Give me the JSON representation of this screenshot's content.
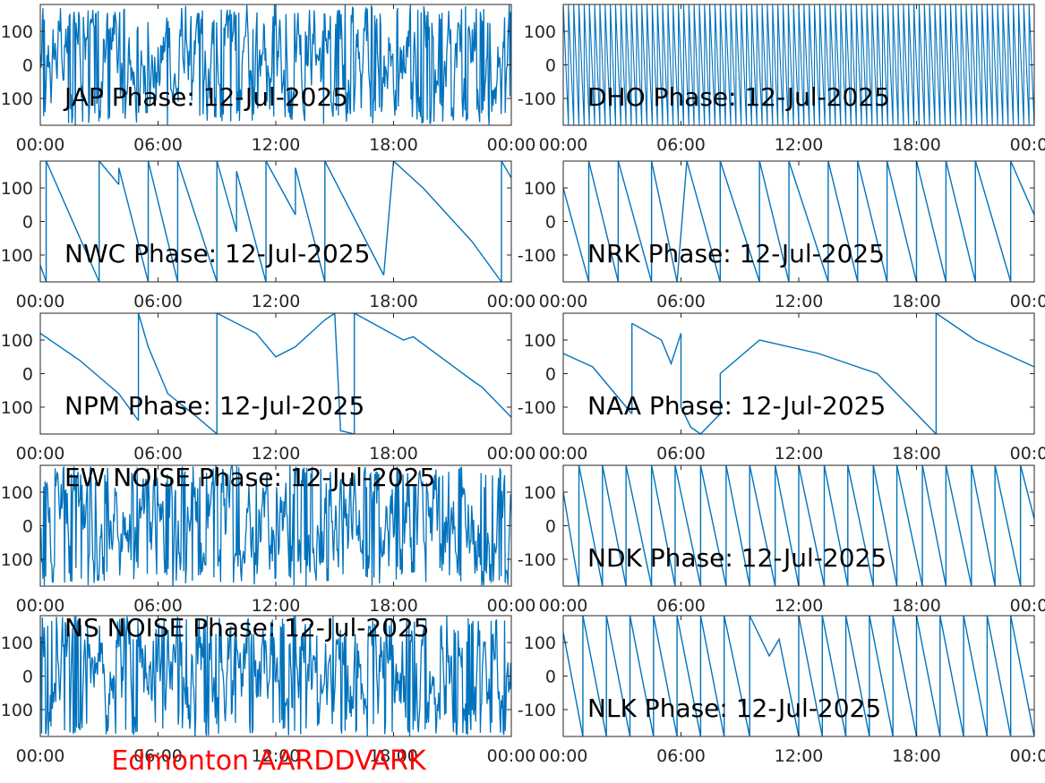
{
  "station_label": "Edmonton AARDDVARK",
  "colors": {
    "trace": "#0072bd",
    "axes": "#262626",
    "station_label": "#ff0000"
  },
  "chart_data": [
    {
      "type": "line",
      "title": "JAP Phase: 12-Jul-2025",
      "xlim": [
        0,
        24
      ],
      "ylim": [
        -180,
        180
      ],
      "xticks": [
        "00:00",
        "06:00",
        "12:00",
        "18:00",
        "00:00"
      ],
      "yticks": [
        "-100",
        "0",
        "100"
      ],
      "grid": false,
      "pattern": "noise"
    },
    {
      "type": "line",
      "title": "DHO Phase: 12-Jul-2025",
      "xlim": [
        0,
        24
      ],
      "ylim": [
        -180,
        180
      ],
      "xticks": [
        "00:00",
        "06:00",
        "12:00",
        "18:00",
        "00:00"
      ],
      "yticks": [
        "-100",
        "0",
        "100"
      ],
      "grid": false,
      "pattern": "dense-wrap"
    },
    {
      "type": "line",
      "title": "NWC Phase: 12-Jul-2025",
      "xlim": [
        0,
        24
      ],
      "ylim": [
        -180,
        180
      ],
      "xticks": [
        "00:00",
        "06:00",
        "12:00",
        "18:00",
        "00:00"
      ],
      "yticks": [
        "-100",
        "0",
        "100"
      ],
      "grid": false,
      "pattern": "wrap",
      "series": [
        {
          "x": [
            0.0,
            0.3
          ],
          "y": [
            -130,
            -180
          ]
        },
        {
          "x": [
            0.3,
            3.0
          ],
          "y": [
            180,
            -180
          ]
        },
        {
          "x": [
            3.0,
            4.0
          ],
          "y": [
            180,
            110
          ]
        },
        {
          "x": [
            4.0,
            5.5
          ],
          "y": [
            160,
            -180
          ]
        },
        {
          "x": [
            5.5,
            7.0
          ],
          "y": [
            180,
            -180
          ]
        },
        {
          "x": [
            7.0,
            9.0
          ],
          "y": [
            180,
            -180
          ]
        },
        {
          "x": [
            9.0,
            10.0
          ],
          "y": [
            180,
            -30
          ]
        },
        {
          "x": [
            10.0,
            11.5
          ],
          "y": [
            150,
            -180
          ]
        },
        {
          "x": [
            11.5,
            13.0
          ],
          "y": [
            180,
            20
          ]
        },
        {
          "x": [
            13.0,
            14.5
          ],
          "y": [
            160,
            -180
          ]
        },
        {
          "x": [
            14.5,
            17.5
          ],
          "y": [
            180,
            -160
          ]
        },
        {
          "x": [
            18.0,
            19.5
          ],
          "y": [
            180,
            100
          ]
        },
        {
          "x": [
            19.5,
            22.0
          ],
          "y": [
            100,
            -60
          ]
        },
        {
          "x": [
            22.0,
            23.5
          ],
          "y": [
            -60,
            -180
          ]
        },
        {
          "x": [
            23.5,
            24.0
          ],
          "y": [
            180,
            130
          ]
        }
      ]
    },
    {
      "type": "line",
      "title": "NRK Phase: 12-Jul-2025",
      "xlim": [
        0,
        24
      ],
      "ylim": [
        -180,
        180
      ],
      "xticks": [
        "00:00",
        "06:00",
        "12:00",
        "18:00",
        "00:00"
      ],
      "yticks": [
        "-100",
        "0",
        "100"
      ],
      "grid": false,
      "pattern": "wrap",
      "series": [
        {
          "x": [
            0.0,
            1.3
          ],
          "y": [
            100,
            -180
          ]
        },
        {
          "x": [
            1.3,
            2.8
          ],
          "y": [
            180,
            -180
          ]
        },
        {
          "x": [
            2.8,
            4.5
          ],
          "y": [
            180,
            -180
          ]
        },
        {
          "x": [
            4.5,
            5.8
          ],
          "y": [
            180,
            -180
          ]
        },
        {
          "x": [
            6.3,
            8.0
          ],
          "y": [
            180,
            -180
          ]
        },
        {
          "x": [
            8.0,
            10.0
          ],
          "y": [
            180,
            -180
          ]
        },
        {
          "x": [
            10.0,
            11.5
          ],
          "y": [
            180,
            -180
          ]
        },
        {
          "x": [
            11.5,
            13.5
          ],
          "y": [
            180,
            -180
          ]
        },
        {
          "x": [
            13.5,
            15.0
          ],
          "y": [
            180,
            -180
          ]
        },
        {
          "x": [
            15.0,
            16.5
          ],
          "y": [
            180,
            -180
          ]
        },
        {
          "x": [
            16.5,
            18.0
          ],
          "y": [
            180,
            -180
          ]
        },
        {
          "x": [
            18.0,
            19.5
          ],
          "y": [
            180,
            -180
          ]
        },
        {
          "x": [
            19.5,
            21.0
          ],
          "y": [
            180,
            -180
          ]
        },
        {
          "x": [
            21.0,
            22.8
          ],
          "y": [
            180,
            -180
          ]
        },
        {
          "x": [
            22.8,
            24.0
          ],
          "y": [
            180,
            20
          ]
        }
      ]
    },
    {
      "type": "line",
      "title": "NPM Phase: 12-Jul-2025",
      "xlim": [
        0,
        24
      ],
      "ylim": [
        -180,
        180
      ],
      "xticks": [
        "00:00",
        "06:00",
        "12:00",
        "18:00",
        "00:00"
      ],
      "yticks": [
        "-100",
        "0",
        "100"
      ],
      "grid": false,
      "pattern": "wrap",
      "series": [
        {
          "x": [
            0.0,
            2.0,
            4.0,
            5.0
          ],
          "y": [
            120,
            40,
            -60,
            -140
          ]
        },
        {
          "x": [
            5.0,
            5.5,
            6.5,
            8.0,
            9.0
          ],
          "y": [
            180,
            80,
            -60,
            -130,
            -180
          ]
        },
        {
          "x": [
            9.0,
            11.0,
            12.0,
            13.0,
            14.5,
            15.0
          ],
          "y": [
            180,
            120,
            50,
            80,
            160,
            180
          ]
        },
        {
          "x": [
            15.0,
            15.3,
            16.0
          ],
          "y": [
            180,
            -170,
            -180
          ]
        },
        {
          "x": [
            16.0,
            18.5,
            19.0,
            22.0,
            22.5,
            24.0
          ],
          "y": [
            180,
            100,
            110,
            -20,
            -40,
            -130
          ]
        }
      ]
    },
    {
      "type": "line",
      "title": "NAA Phase: 12-Jul-2025",
      "xlim": [
        0,
        24
      ],
      "ylim": [
        -180,
        180
      ],
      "xticks": [
        "00:00",
        "06:00",
        "12:00",
        "18:00",
        "00:00"
      ],
      "yticks": [
        "-100",
        "0",
        "100"
      ],
      "grid": false,
      "pattern": "wrap",
      "series": [
        {
          "x": [
            0.0,
            1.5,
            3.5
          ],
          "y": [
            60,
            20,
            -120
          ]
        },
        {
          "x": [
            3.5,
            5.0,
            5.5,
            6.0
          ],
          "y": [
            150,
            100,
            30,
            120
          ]
        },
        {
          "x": [
            6.0,
            6.5,
            7.0,
            8.0
          ],
          "y": [
            -100,
            -160,
            -180,
            -120
          ]
        },
        {
          "x": [
            8.0,
            10.0,
            13.0,
            16.0,
            18.0,
            19.0
          ],
          "y": [
            0,
            100,
            60,
            0,
            -120,
            -180
          ]
        },
        {
          "x": [
            19.0,
            21.0,
            24.0
          ],
          "y": [
            180,
            100,
            20
          ]
        }
      ]
    },
    {
      "type": "line",
      "title": "EW NOISE Phase: 12-Jul-2025",
      "xlim": [
        0,
        24
      ],
      "ylim": [
        -180,
        180
      ],
      "xticks": [
        "00:00",
        "06:00",
        "12:00",
        "18:00",
        "00:00"
      ],
      "yticks": [
        "-100",
        "0",
        "100"
      ],
      "grid": false,
      "pattern": "noise"
    },
    {
      "type": "line",
      "title": "NDK Phase: 12-Jul-2025",
      "xlim": [
        0,
        24
      ],
      "ylim": [
        -180,
        180
      ],
      "xticks": [
        "00:00",
        "06:00",
        "12:00",
        "18:00",
        "00:00"
      ],
      "yticks": [
        "-100",
        "0",
        "100"
      ],
      "grid": false,
      "pattern": "wrap",
      "series": [
        {
          "x": [
            0.0,
            0.8
          ],
          "y": [
            100,
            -180
          ]
        },
        {
          "x": [
            0.8,
            2.0
          ],
          "y": [
            180,
            -180
          ]
        },
        {
          "x": [
            2.0,
            3.2
          ],
          "y": [
            180,
            -180
          ]
        },
        {
          "x": [
            3.2,
            4.5
          ],
          "y": [
            180,
            -180
          ]
        },
        {
          "x": [
            4.5,
            5.7
          ],
          "y": [
            180,
            -180
          ]
        },
        {
          "x": [
            5.7,
            7.0
          ],
          "y": [
            180,
            -180
          ]
        },
        {
          "x": [
            7.0,
            8.3
          ],
          "y": [
            180,
            -180
          ]
        },
        {
          "x": [
            8.3,
            9.5
          ],
          "y": [
            180,
            -180
          ]
        },
        {
          "x": [
            9.5,
            10.8
          ],
          "y": [
            180,
            -180
          ]
        },
        {
          "x": [
            10.8,
            12.0
          ],
          "y": [
            180,
            -180
          ]
        },
        {
          "x": [
            12.0,
            13.3
          ],
          "y": [
            180,
            -180
          ]
        },
        {
          "x": [
            13.3,
            14.5
          ],
          "y": [
            180,
            -180
          ]
        },
        {
          "x": [
            14.5,
            15.8
          ],
          "y": [
            180,
            -180
          ]
        },
        {
          "x": [
            15.8,
            17.0
          ],
          "y": [
            180,
            -180
          ]
        },
        {
          "x": [
            17.0,
            18.3
          ],
          "y": [
            180,
            -180
          ]
        },
        {
          "x": [
            18.3,
            19.5
          ],
          "y": [
            180,
            -180
          ]
        },
        {
          "x": [
            19.5,
            20.8
          ],
          "y": [
            180,
            -180
          ]
        },
        {
          "x": [
            20.8,
            22.0
          ],
          "y": [
            180,
            -180
          ]
        },
        {
          "x": [
            22.0,
            23.3
          ],
          "y": [
            180,
            -180
          ]
        },
        {
          "x": [
            23.3,
            24.0
          ],
          "y": [
            180,
            20
          ]
        }
      ]
    },
    {
      "type": "line",
      "title": "NS NOISE Phase: 12-Jul-2025",
      "xlim": [
        0,
        24
      ],
      "ylim": [
        -180,
        180
      ],
      "xticks": [
        "00:00",
        "06:00",
        "12:00",
        "18:00",
        "00:00"
      ],
      "yticks": [
        "-100",
        "0",
        "100"
      ],
      "grid": false,
      "pattern": "noise"
    },
    {
      "type": "line",
      "title": "NLK Phase: 12-Jul-2025",
      "xlim": [
        0,
        24
      ],
      "ylim": [
        -180,
        180
      ],
      "xticks": [
        "00:00",
        "06:00",
        "12:00",
        "18:00",
        "00:00"
      ],
      "yticks": [
        "-100",
        "0",
        "100"
      ],
      "grid": false,
      "pattern": "wrap",
      "series": [
        {
          "x": [
            0.0,
            1.0
          ],
          "y": [
            130,
            -180
          ]
        },
        {
          "x": [
            1.0,
            2.2
          ],
          "y": [
            180,
            -180
          ]
        },
        {
          "x": [
            2.2,
            3.4
          ],
          "y": [
            180,
            -180
          ]
        },
        {
          "x": [
            3.4,
            4.6
          ],
          "y": [
            180,
            -180
          ]
        },
        {
          "x": [
            4.6,
            5.8
          ],
          "y": [
            180,
            -180
          ]
        },
        {
          "x": [
            5.8,
            7.0
          ],
          "y": [
            180,
            -180
          ]
        },
        {
          "x": [
            7.0,
            8.2
          ],
          "y": [
            180,
            -180
          ]
        },
        {
          "x": [
            8.2,
            9.5
          ],
          "y": [
            180,
            -180
          ]
        },
        {
          "x": [
            9.5,
            10.5,
            11.0,
            12.0
          ],
          "y": [
            180,
            60,
            110,
            -180
          ]
        },
        {
          "x": [
            12.0,
            13.2
          ],
          "y": [
            180,
            -180
          ]
        },
        {
          "x": [
            13.2,
            14.4
          ],
          "y": [
            180,
            -180
          ]
        },
        {
          "x": [
            14.4,
            15.6
          ],
          "y": [
            180,
            -180
          ]
        },
        {
          "x": [
            15.6,
            16.8
          ],
          "y": [
            180,
            -180
          ]
        },
        {
          "x": [
            16.8,
            18.0
          ],
          "y": [
            180,
            -180
          ]
        },
        {
          "x": [
            18.0,
            19.2
          ],
          "y": [
            180,
            -180
          ]
        },
        {
          "x": [
            19.2,
            20.4
          ],
          "y": [
            180,
            -180
          ]
        },
        {
          "x": [
            20.4,
            21.6
          ],
          "y": [
            180,
            -180
          ]
        },
        {
          "x": [
            21.6,
            22.8
          ],
          "y": [
            180,
            -180
          ]
        },
        {
          "x": [
            22.8,
            24.0
          ],
          "y": [
            180,
            -180
          ]
        }
      ]
    }
  ]
}
